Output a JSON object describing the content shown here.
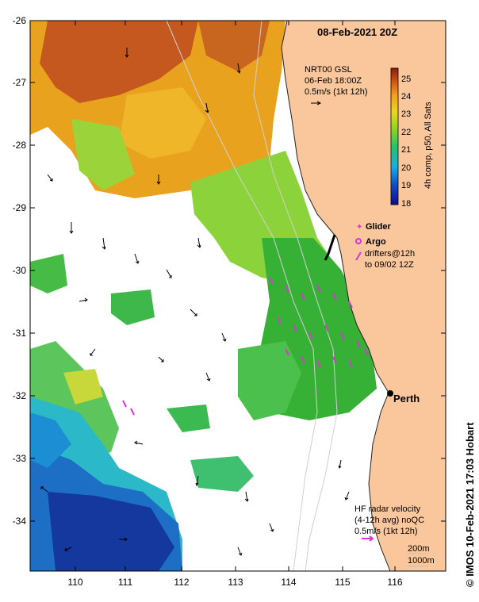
{
  "title": "08-Feb-2021 20Z",
  "sst_product": {
    "line1": "NRT00 GSL",
    "line2": "06-Feb 18:00Z",
    "line3": "0.5m/s (1kt 12h)"
  },
  "colorbar": {
    "ticks": [
      "25",
      "24",
      "23",
      "22",
      "21",
      "20",
      "19",
      "18"
    ],
    "label": "4h comp, p50, All Sats"
  },
  "legend": {
    "glider": "Glider",
    "argo": "Argo",
    "drifters_line1": "drifters@12h",
    "drifters_line2": "to 09/02 12Z"
  },
  "place": "Perth",
  "hf_radar": {
    "line1": "HF radar velocity",
    "line2": "(4-12h avg) noQC",
    "line3": "0.5m/s (1kt 12h)"
  },
  "isobaths": {
    "shallow": "200m",
    "deep": "1000m"
  },
  "credit": "© IMOS 10-Feb-2021 17:03 Hobart",
  "y_ticks": [
    "-26",
    "-27",
    "-28",
    "-29",
    "-30",
    "-31",
    "-32",
    "-33",
    "-34"
  ],
  "x_ticks": [
    "110",
    "111",
    "112",
    "113",
    "114",
    "115",
    "116"
  ],
  "colors": {
    "land": "#f9c79b",
    "sst_warm": "#c8501b",
    "sst_orange": "#e9a21e",
    "sst_green": "#36b136",
    "sst_cyan": "#20b5d5",
    "sst_blue": "#1b3ea8",
    "drifter": "#e030e0"
  }
}
